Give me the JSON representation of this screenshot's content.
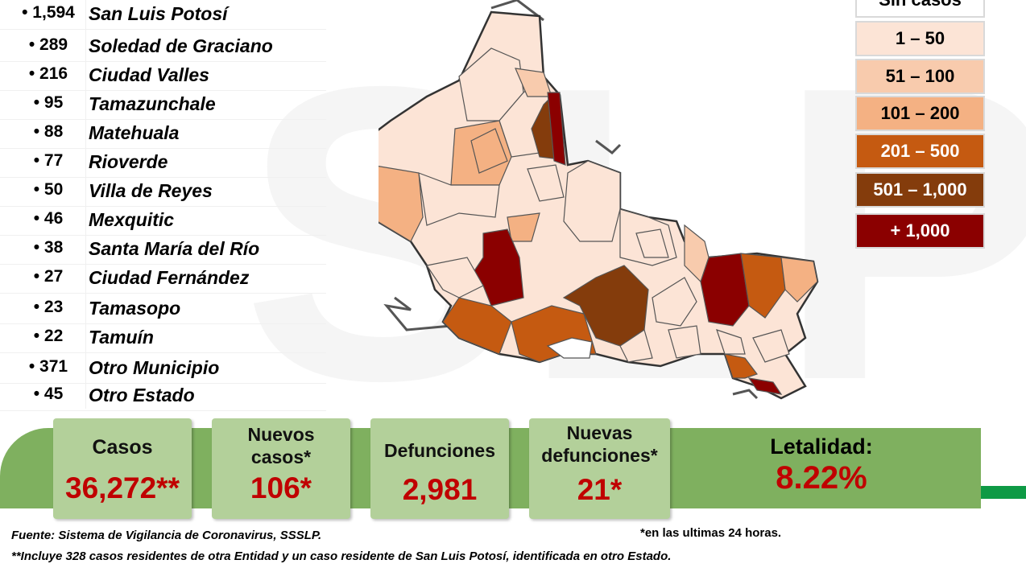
{
  "municipalities": [
    {
      "count": "• 1,594",
      "name": "San Luis Potosí"
    },
    {
      "count": "• 289",
      "name": "Soledad de Graciano"
    },
    {
      "count": "• 216",
      "name": "Ciudad Valles"
    },
    {
      "count": "• 95",
      "name": "Tamazunchale"
    },
    {
      "count": "• 88",
      "name": "Matehuala"
    },
    {
      "count": "• 77",
      "name": "Rioverde"
    },
    {
      "count": "• 50",
      "name": "Villa de Reyes"
    },
    {
      "count": "• 46",
      "name": "Mexquitic"
    },
    {
      "count": "• 38",
      "name": "Santa María del Río"
    },
    {
      "count": "• 27",
      "name": "Ciudad Fernández"
    },
    {
      "count": "• 23",
      "name": "Tamasopo"
    },
    {
      "count": "• 22",
      "name": "Tamuín"
    },
    {
      "count": "• 371",
      "name": "Otro Municipio"
    },
    {
      "count": "• 45",
      "name": "Otro Estado"
    }
  ],
  "legend": [
    {
      "label": "Sin casos",
      "color": "#ffffff",
      "text_color": "#000000"
    },
    {
      "label": "1 – 50",
      "color": "#fce4d6",
      "text_color": "#000000"
    },
    {
      "label": "51 – 100",
      "color": "#f8cbad",
      "text_color": "#000000"
    },
    {
      "label": "101 – 200",
      "color": "#f4b183",
      "text_color": "#000000"
    },
    {
      "label": "201 – 500",
      "color": "#c55a11",
      "text_color": "#ffffff"
    },
    {
      "label": "501 – 1,000",
      "color": "#843c0c",
      "text_color": "#ffffff"
    },
    {
      "label": "+ 1,000",
      "color": "#8b0000",
      "text_color": "#ffffff"
    }
  ],
  "stats": {
    "casos_label": "Casos",
    "casos_value": "36,272**",
    "nuevos_label_1": "Nuevos",
    "nuevos_label_2": "casos*",
    "nuevos_value": "106*",
    "defunciones_label": "Defunciones",
    "defunciones_value": "2,981",
    "nuevas_def_label_1": "Nuevas",
    "nuevas_def_label_2": "defunciones*",
    "nuevas_def_value": "21*",
    "letalidad_label": "Letalidad:",
    "letalidad_value": "8.22%"
  },
  "notes": {
    "fuente": "Fuente: Sistema de Vigilancia de Coronavirus, SSSLP.",
    "incluye": "**Incluye 328 casos residentes de otra Entidad y un caso residente de San Luis Potosí, identificada en otro Estado.",
    "ultimas": "*en las ultimas 24 horas."
  },
  "colors": {
    "band_green": "#7fb05f",
    "card_green": "#b3d09a",
    "value_red": "#c00000",
    "stripe_green": "#0e9a45"
  }
}
